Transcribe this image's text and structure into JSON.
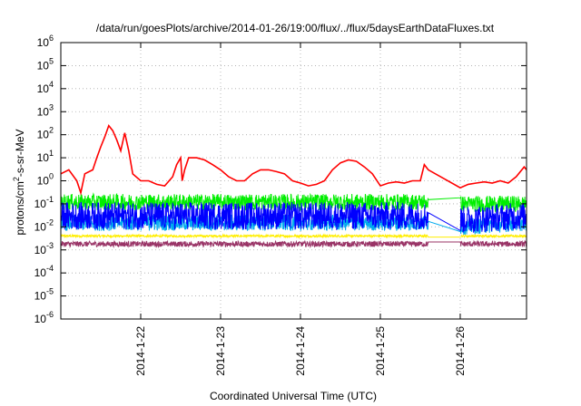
{
  "chart_data": {
    "type": "line",
    "title": "/data/run/goesPlots/archive/2014-01-26/19:00/flux/../flux/5daysEarthDataFluxes.txt",
    "xlabel": "Coordinated Universal Time (UTC)",
    "ylabel": {
      "base": "protons/cm",
      "sup": "2",
      "rest": "-s-sr-MeV"
    },
    "x_unit": "days",
    "xlim": [
      0,
      5.83
    ],
    "x_ticks": [
      {
        "value": 1.0,
        "label": "2014-1-22"
      },
      {
        "value": 2.0,
        "label": "2014-1-23"
      },
      {
        "value": 3.0,
        "label": "2014-1-24"
      },
      {
        "value": 4.0,
        "label": "2014-1-25"
      },
      {
        "value": 5.0,
        "label": "2014-1-26"
      }
    ],
    "y_scale": "log",
    "ylim": [
      1e-06,
      1000000.0
    ],
    "y_ticks": [
      {
        "value": 1e-06,
        "base": "10",
        "exp": "-6"
      },
      {
        "value": 1e-05,
        "base": "10",
        "exp": "-5"
      },
      {
        "value": 0.0001,
        "base": "10",
        "exp": "-4"
      },
      {
        "value": 0.001,
        "base": "10",
        "exp": "-3"
      },
      {
        "value": 0.01,
        "base": "10",
        "exp": "-2"
      },
      {
        "value": 0.1,
        "base": "10",
        "exp": "-1"
      },
      {
        "value": 1,
        "base": "10",
        "exp": "0"
      },
      {
        "value": 10,
        "base": "10",
        "exp": "1"
      },
      {
        "value": 100,
        "base": "10",
        "exp": "2"
      },
      {
        "value": 1000,
        "base": "10",
        "exp": "3"
      },
      {
        "value": 10000,
        "base": "10",
        "exp": "4"
      },
      {
        "value": 100000,
        "base": "10",
        "exp": "5"
      },
      {
        "value": 1000000,
        "base": "10",
        "exp": "6"
      }
    ],
    "grid": true,
    "series": [
      {
        "color": "#ff0000",
        "style": "smooth",
        "values": [
          [
            0.0,
            2.0
          ],
          [
            0.1,
            3.0
          ],
          [
            0.2,
            1.0
          ],
          [
            0.25,
            0.3
          ],
          [
            0.3,
            2.0
          ],
          [
            0.4,
            3.0
          ],
          [
            0.45,
            10
          ],
          [
            0.5,
            30
          ],
          [
            0.55,
            80
          ],
          [
            0.6,
            250
          ],
          [
            0.65,
            150
          ],
          [
            0.7,
            60
          ],
          [
            0.75,
            20
          ],
          [
            0.8,
            120
          ],
          [
            0.85,
            20
          ],
          [
            0.9,
            2.0
          ],
          [
            1.0,
            1.0
          ],
          [
            1.1,
            1.0
          ],
          [
            1.2,
            0.7
          ],
          [
            1.3,
            0.6
          ],
          [
            1.4,
            1.5
          ],
          [
            1.45,
            5.0
          ],
          [
            1.5,
            10
          ],
          [
            1.52,
            1.0
          ],
          [
            1.55,
            3.0
          ],
          [
            1.6,
            10
          ],
          [
            1.7,
            10
          ],
          [
            1.8,
            8.0
          ],
          [
            1.9,
            5.0
          ],
          [
            2.0,
            3.0
          ],
          [
            2.1,
            1.5
          ],
          [
            2.2,
            1.0
          ],
          [
            2.3,
            1.0
          ],
          [
            2.4,
            2.0
          ],
          [
            2.5,
            3.0
          ],
          [
            2.6,
            3.0
          ],
          [
            2.7,
            2.5
          ],
          [
            2.8,
            2.0
          ],
          [
            2.9,
            1.0
          ],
          [
            3.0,
            0.8
          ],
          [
            3.1,
            0.6
          ],
          [
            3.2,
            0.7
          ],
          [
            3.3,
            1.0
          ],
          [
            3.4,
            3.0
          ],
          [
            3.5,
            6.0
          ],
          [
            3.6,
            8.0
          ],
          [
            3.7,
            7.0
          ],
          [
            3.8,
            4.0
          ],
          [
            3.9,
            2.0
          ],
          [
            4.0,
            0.6
          ],
          [
            4.1,
            0.8
          ],
          [
            4.2,
            0.9
          ],
          [
            4.3,
            0.8
          ],
          [
            4.4,
            1.0
          ],
          [
            4.5,
            1.0
          ],
          [
            4.55,
            5.0
          ],
          [
            4.6,
            3.0
          ],
          [
            5.0,
            0.5
          ],
          [
            5.1,
            0.7
          ],
          [
            5.2,
            0.8
          ],
          [
            5.3,
            0.9
          ],
          [
            5.4,
            0.8
          ],
          [
            5.5,
            1.0
          ],
          [
            5.6,
            0.8
          ],
          [
            5.7,
            1.5
          ],
          [
            5.8,
            4.0
          ],
          [
            5.83,
            3.0
          ]
        ]
      },
      {
        "color": "#00ee00",
        "style": "noisy",
        "noise": 0.35,
        "values": [
          [
            0.0,
            0.12
          ],
          [
            1.0,
            0.12
          ],
          [
            2.0,
            0.12
          ],
          [
            3.0,
            0.12
          ],
          [
            4.0,
            0.12
          ],
          [
            4.6,
            0.12
          ],
          [
            5.0,
            0.1
          ],
          [
            5.83,
            0.1
          ]
        ]
      },
      {
        "color": "#0000ff",
        "style": "noisy",
        "noise": 0.6,
        "values": [
          [
            0.0,
            0.03
          ],
          [
            1.0,
            0.03
          ],
          [
            2.0,
            0.03
          ],
          [
            3.0,
            0.03
          ],
          [
            4.0,
            0.03
          ],
          [
            4.6,
            0.03
          ],
          [
            5.0,
            0.02
          ],
          [
            5.83,
            0.03
          ]
        ]
      },
      {
        "color": "#00aaee",
        "style": "noisy",
        "noise": 0.35,
        "values": [
          [
            0.0,
            0.015
          ],
          [
            1.0,
            0.015
          ],
          [
            2.0,
            0.015
          ],
          [
            3.0,
            0.015
          ],
          [
            4.0,
            0.015
          ],
          [
            4.6,
            0.015
          ],
          [
            5.0,
            0.01
          ],
          [
            5.83,
            0.015
          ]
        ]
      },
      {
        "color": "#ffee00",
        "style": "noisy",
        "noise": 0.05,
        "values": [
          [
            0.0,
            0.004
          ],
          [
            2.0,
            0.004
          ],
          [
            4.0,
            0.004
          ],
          [
            5.83,
            0.004
          ]
        ]
      },
      {
        "color": "#993366",
        "style": "noisy",
        "noise": 0.12,
        "values": [
          [
            0.0,
            0.0018
          ],
          [
            2.0,
            0.0018
          ],
          [
            4.0,
            0.0018
          ],
          [
            5.83,
            0.0018
          ]
        ]
      }
    ]
  }
}
